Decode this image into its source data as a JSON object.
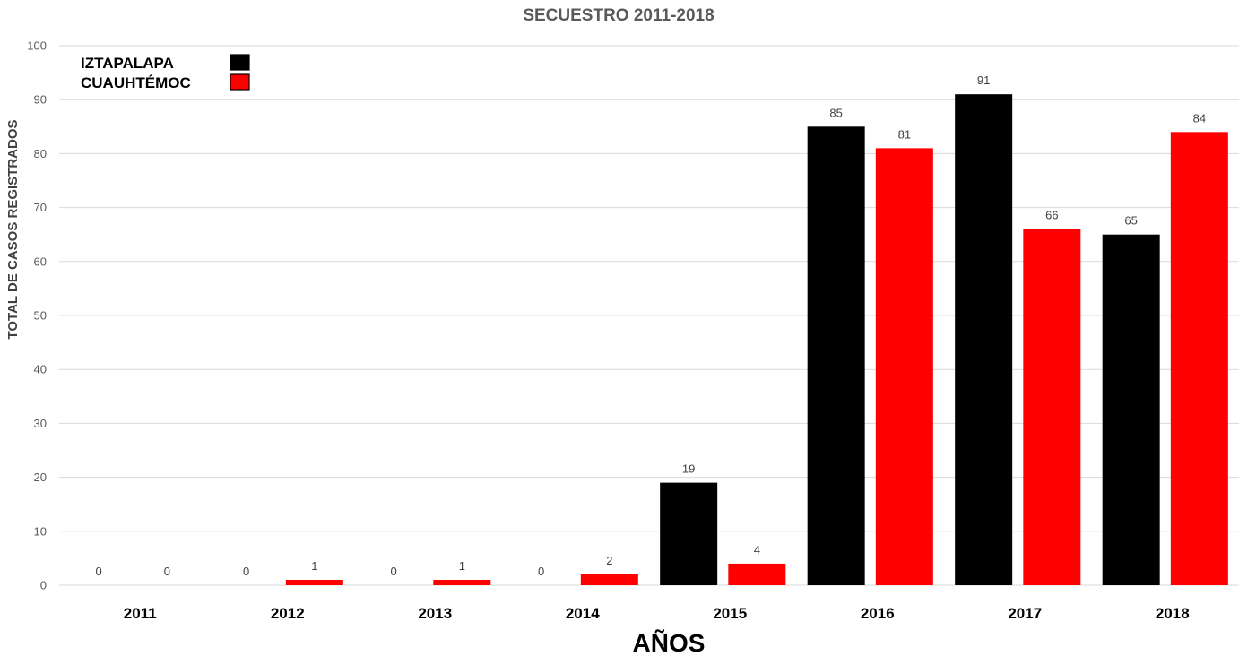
{
  "chart_data": {
    "type": "bar",
    "title": "SECUESTRO 2011-2018",
    "xlabel": "AÑOS",
    "ylabel": "TOTAL DE CASOS REGISTRADOS",
    "ylim": [
      0,
      100
    ],
    "yticks": [
      0,
      10,
      20,
      30,
      40,
      50,
      60,
      70,
      80,
      90,
      100
    ],
    "grid": true,
    "legend": "top-left",
    "categories": [
      "2011",
      "2012",
      "2013",
      "2014",
      "2015",
      "2016",
      "2017",
      "2018"
    ],
    "series": [
      {
        "name": "IZTAPALAPA",
        "color": "#000000",
        "values": [
          0,
          0,
          0,
          0,
          19,
          85,
          91,
          65
        ]
      },
      {
        "name": "CUAUHTÉMOC",
        "color": "#ff0000",
        "values": [
          0,
          1,
          1,
          2,
          4,
          81,
          66,
          84
        ]
      }
    ]
  }
}
